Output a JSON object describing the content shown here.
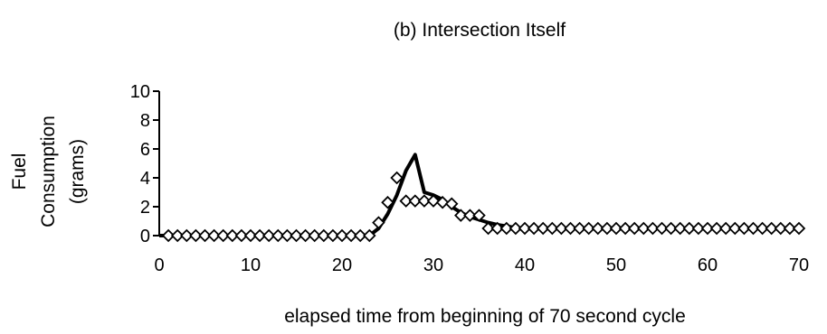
{
  "chart_data": {
    "type": "line",
    "title": "(b) Intersection Itself",
    "xlabel": "elapsed time from beginning of 70 second cycle",
    "ylabel_lines": [
      "Fuel",
      "Consumption",
      "(grams)"
    ],
    "xlim": [
      0,
      70
    ],
    "ylim": [
      0,
      10
    ],
    "xticks": [
      "0",
      "10",
      "20",
      "30",
      "40",
      "50",
      "60",
      "70"
    ],
    "yticks": [
      "0",
      "2",
      "4",
      "6",
      "8",
      "10"
    ],
    "grid": false,
    "legend": "none",
    "colors": {
      "line": "#000000",
      "markers": "#000000",
      "background": "#ffffff"
    },
    "series": [
      {
        "style": "solid-line",
        "x": [
          0,
          23,
          24,
          25,
          26,
          27,
          28,
          29,
          30,
          31,
          32,
          33,
          34,
          35,
          36,
          37,
          38,
          39,
          40,
          70
        ],
        "y": [
          0,
          0,
          0.5,
          1.5,
          2.8,
          4.5,
          5.6,
          3.0,
          2.8,
          2.5,
          2.0,
          1.6,
          1.3,
          1.1,
          0.9,
          0.75,
          0.65,
          0.55,
          0.5,
          0.5
        ]
      },
      {
        "style": "diamond-markers",
        "x": [
          1,
          2,
          3,
          4,
          5,
          6,
          7,
          8,
          9,
          10,
          11,
          12,
          13,
          14,
          15,
          16,
          17,
          18,
          19,
          20,
          21,
          22,
          23,
          24,
          25,
          26,
          27,
          28,
          29,
          30,
          31,
          32,
          33,
          34,
          35,
          36,
          37,
          38,
          39,
          40,
          41,
          42,
          43,
          44,
          45,
          46,
          47,
          48,
          49,
          50,
          51,
          52,
          53,
          54,
          55,
          56,
          57,
          58,
          59,
          60,
          61,
          62,
          63,
          64,
          65,
          66,
          67,
          68,
          69,
          70
        ],
        "y": [
          0,
          0,
          0,
          0,
          0,
          0,
          0,
          0,
          0,
          0,
          0,
          0,
          0,
          0,
          0,
          0,
          0,
          0,
          0,
          0,
          0,
          0,
          0,
          0.9,
          2.3,
          4.0,
          2.4,
          2.4,
          2.4,
          2.4,
          2.3,
          2.2,
          1.4,
          1.4,
          1.4,
          0.5,
          0.5,
          0.5,
          0.5,
          0.5,
          0.5,
          0.5,
          0.5,
          0.5,
          0.5,
          0.5,
          0.5,
          0.5,
          0.5,
          0.5,
          0.5,
          0.5,
          0.5,
          0.5,
          0.5,
          0.5,
          0.5,
          0.5,
          0.5,
          0.5,
          0.5,
          0.5,
          0.5,
          0.5,
          0.5,
          0.5,
          0.5,
          0.5,
          0.5,
          0.5
        ]
      }
    ]
  }
}
